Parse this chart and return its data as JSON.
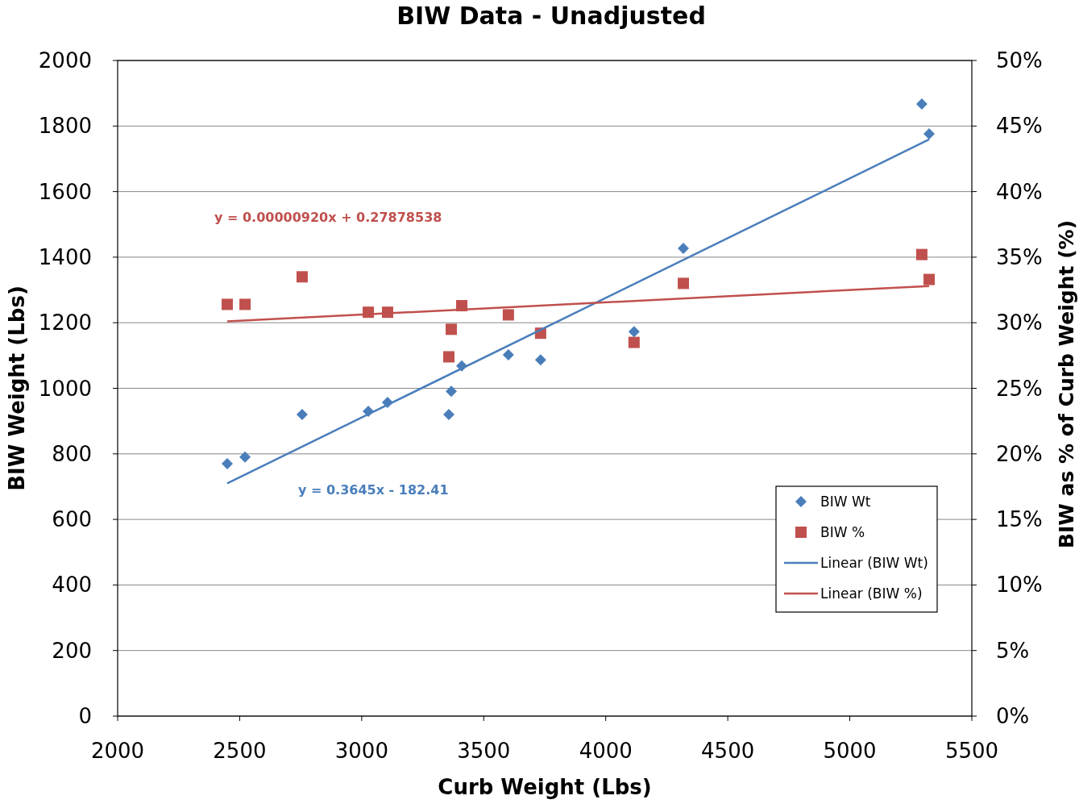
{
  "chart_data": {
    "type": "scatter",
    "title": "BIW Data - Unadjusted",
    "xlabel": "Curb Weight (Lbs)",
    "ylabel": "BIW Weight (Lbs)",
    "y2label": "BIW as % of Curb Weight (%)",
    "xlim": [
      2000,
      5500
    ],
    "xticks": [
      2000,
      2500,
      3000,
      3500,
      4000,
      4500,
      5000,
      5500
    ],
    "ylim": [
      0,
      2000
    ],
    "yticks": [
      0,
      200,
      400,
      600,
      800,
      1000,
      1200,
      1400,
      1600,
      1800,
      2000
    ],
    "y2lim": [
      0,
      50
    ],
    "y2ticks": [
      {
        "value": 0,
        "label": "0%"
      },
      {
        "value": 5,
        "label": "5%"
      },
      {
        "value": 10,
        "label": "10%"
      },
      {
        "value": 15,
        "label": "15%"
      },
      {
        "value": 20,
        "label": "20%"
      },
      {
        "value": 25,
        "label": "25%"
      },
      {
        "value": 30,
        "label": "30%"
      },
      {
        "value": 35,
        "label": "35%"
      },
      {
        "value": 40,
        "label": "40%"
      },
      {
        "value": 45,
        "label": "45%"
      },
      {
        "value": 50,
        "label": "50%"
      }
    ],
    "grid": "y",
    "legend": "right",
    "x": [
      2449,
      2522,
      2756,
      3027,
      3106,
      3357,
      3367,
      3410,
      3601,
      3733,
      4116,
      4318,
      5295,
      5325
    ],
    "series": [
      {
        "name": "BIW Wt",
        "marker": "diamond",
        "color": "#4a7ebb",
        "values": [
          770,
          790,
          920,
          930,
          957,
          920,
          991,
          1068,
          1102,
          1087,
          1173,
          1427,
          1867,
          1776
        ]
      },
      {
        "name": "BIW %",
        "marker": "square",
        "color": "#c0504d",
        "axis": "y2",
        "values": [
          31.4,
          31.4,
          33.5,
          30.8,
          30.8,
          27.4,
          29.5,
          31.3,
          30.6,
          29.2,
          28.5,
          33.0,
          35.2,
          33.3
        ]
      },
      {
        "name": "Linear (BIW Wt)",
        "type": "line",
        "color": "#4a7ebb",
        "values": [
          710,
          null,
          null,
          null,
          null,
          null,
          null,
          null,
          null,
          null,
          null,
          null,
          null,
          1759
        ]
      },
      {
        "name": "Linear (BIW %)",
        "type": "line",
        "color": "#c0504d",
        "axis": "y2",
        "values": [
          30.1,
          null,
          null,
          null,
          null,
          null,
          null,
          null,
          null,
          null,
          null,
          null,
          null,
          32.8
        ]
      }
    ],
    "annotations": [
      "y = 0.3645x - 182.41",
      "y = 0.00000920x + 0.27878538"
    ]
  }
}
